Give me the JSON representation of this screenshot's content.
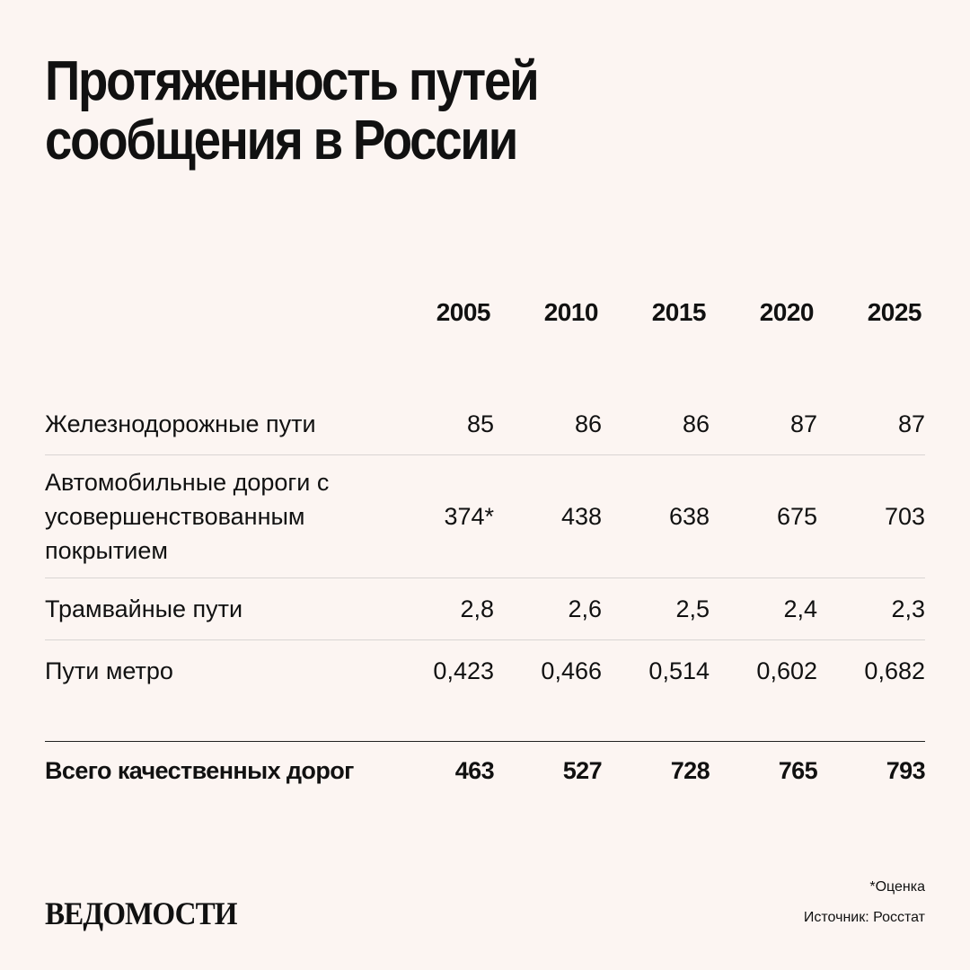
{
  "header": {
    "title": "Протяженность путей сообщения в России"
  },
  "table": {
    "years": [
      "2005",
      "2010",
      "2015",
      "2020",
      "2025"
    ],
    "rows": [
      {
        "label": "Железнодорожные пути",
        "values": [
          "85",
          "86",
          "86",
          "87",
          "87"
        ]
      },
      {
        "label": "Автомобильные дороги с усовершенствованным покрытием",
        "values": [
          "374*",
          "438",
          "638",
          "675",
          "703"
        ]
      },
      {
        "label": "Трамвайные пути",
        "values": [
          "2,8",
          "2,6",
          "2,5",
          "2,4",
          "2,3"
        ]
      },
      {
        "label": "Пути метро",
        "values": [
          "0,423",
          "0,466",
          "0,514",
          "0,602",
          "0,682"
        ]
      }
    ],
    "total": {
      "label": "Всего качественных дорог",
      "values": [
        "463",
        "527",
        "728",
        "765",
        "793"
      ]
    }
  },
  "footer": {
    "logo": "ВЕДОМОСТИ",
    "footnote": "*Оценка",
    "source": "Источник: Росстат"
  },
  "colors": {
    "background": "#fcf5f2",
    "text": "#111111",
    "separator": "#d9d5d3",
    "total_separator": "#222222"
  },
  "chart_data": {
    "type": "table",
    "title": "Протяженность путей сообщения в России",
    "columns": [
      "2005",
      "2010",
      "2015",
      "2020",
      "2025"
    ],
    "series": [
      {
        "name": "Железнодорожные пути",
        "values": [
          85,
          86,
          86,
          87,
          87
        ]
      },
      {
        "name": "Автомобильные дороги с усовершенствованным покрытием",
        "values": [
          374,
          438,
          638,
          675,
          703
        ],
        "annotations": {
          "2005": "*Оценка"
        }
      },
      {
        "name": "Трамвайные пути",
        "values": [
          2.8,
          2.6,
          2.5,
          2.4,
          2.3
        ]
      },
      {
        "name": "Пути метро",
        "values": [
          0.423,
          0.466,
          0.514,
          0.602,
          0.682
        ]
      },
      {
        "name": "Всего качественных дорог",
        "values": [
          463,
          527,
          728,
          765,
          793
        ]
      }
    ],
    "footnote": "*Оценка",
    "source": "Источник: Росстат"
  }
}
